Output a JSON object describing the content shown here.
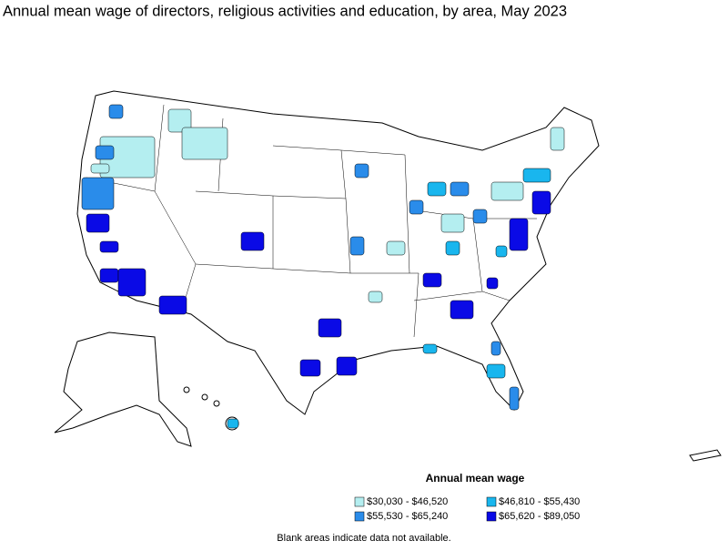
{
  "title": "Annual mean wage of directors, religious activities and education, by area, May 2023",
  "legend": {
    "title": "Annual mean wage",
    "items": [
      {
        "label": "$30,030 - $46,520",
        "color": "#b4eef0"
      },
      {
        "label": "$46,810 - $55,430",
        "color": "#19b6ee"
      },
      {
        "label": "$55,530 - $65,240",
        "color": "#2a8cea"
      },
      {
        "label": "$65,620 - $89,050",
        "color": "#0a0ae6"
      }
    ]
  },
  "footnote": "Blank areas indicate data not available."
}
